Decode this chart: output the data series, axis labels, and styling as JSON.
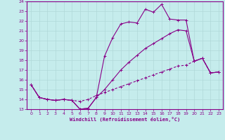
{
  "xlabel": "Windchill (Refroidissement éolien,°C)",
  "xlim": [
    -0.5,
    23.5
  ],
  "ylim": [
    13,
    24
  ],
  "xticks": [
    0,
    1,
    2,
    3,
    4,
    5,
    6,
    7,
    8,
    9,
    10,
    11,
    12,
    13,
    14,
    15,
    16,
    17,
    18,
    19,
    20,
    21,
    22,
    23
  ],
  "yticks": [
    13,
    14,
    15,
    16,
    17,
    18,
    19,
    20,
    21,
    22,
    23,
    24
  ],
  "bg_color": "#c5ecec",
  "grid_color": "#b0d8d8",
  "line_color": "#880088",
  "line2_x": [
    0,
    1,
    2,
    3,
    4,
    5,
    6,
    7,
    8,
    9,
    10,
    11,
    12,
    13,
    14,
    15,
    16,
    17,
    18,
    19,
    20,
    21,
    22,
    23
  ],
  "line2_y": [
    15.5,
    14.2,
    14.0,
    13.9,
    14.0,
    13.9,
    13.0,
    13.1,
    14.2,
    18.4,
    20.3,
    21.7,
    21.9,
    21.8,
    23.2,
    22.9,
    23.7,
    22.2,
    22.1,
    22.1,
    17.9,
    18.2,
    16.7,
    16.8
  ],
  "line1_x": [
    0,
    1,
    2,
    3,
    4,
    5,
    6,
    7,
    8,
    9,
    10,
    11,
    12,
    13,
    14,
    15,
    16,
    17,
    18,
    19,
    20,
    21,
    22,
    23
  ],
  "line1_y": [
    15.5,
    14.2,
    14.0,
    13.9,
    14.0,
    13.9,
    13.0,
    13.1,
    14.2,
    15.0,
    16.0,
    17.0,
    17.8,
    18.5,
    19.2,
    19.7,
    20.2,
    20.7,
    21.1,
    21.0,
    17.9,
    18.2,
    16.7,
    16.8
  ],
  "line3_x": [
    0,
    1,
    2,
    3,
    4,
    5,
    6,
    7,
    8,
    9,
    10,
    11,
    12,
    13,
    14,
    15,
    16,
    17,
    18,
    19,
    20,
    21,
    22,
    23
  ],
  "line3_y": [
    15.5,
    14.2,
    14.0,
    13.9,
    14.0,
    13.9,
    13.8,
    14.0,
    14.4,
    14.7,
    15.0,
    15.3,
    15.6,
    15.9,
    16.2,
    16.5,
    16.8,
    17.1,
    17.4,
    17.5,
    17.9,
    18.2,
    16.7,
    16.8
  ]
}
